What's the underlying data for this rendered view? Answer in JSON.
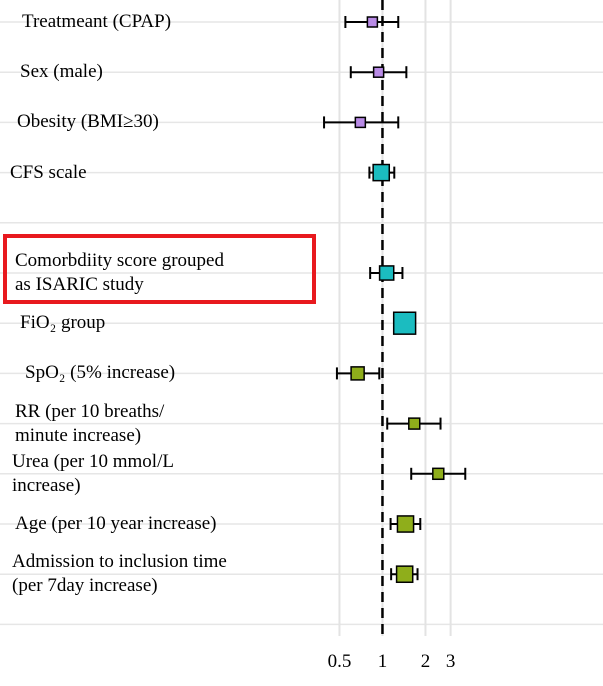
{
  "chart_data": {
    "type": "forest",
    "categories": [
      "Treatmeant (CPAP)",
      "Sex (male)",
      "Obesity (BMI≥30)",
      "CFS scale",
      null,
      "Comorbdiity score grouped\nas ISARIC study",
      "FiO₂ group",
      "SpO₂ (5% increase)",
      "RR (per 10 breaths/\nminute increase)",
      "Urea (per 10 mmol/L\nincrease)",
      "Age (per 10 year increase)",
      "Admission to inclusion time\n(per 7day increase)"
    ],
    "values": [
      0.85,
      0.94,
      0.7,
      0.98,
      null,
      1.07,
      1.43,
      0.67,
      1.67,
      2.46,
      1.45,
      1.43
    ],
    "lower": [
      0.55,
      0.6,
      0.39,
      0.81,
      null,
      0.82,
      1.25,
      0.48,
      1.08,
      1.59,
      1.14,
      1.15
    ],
    "upper": [
      1.29,
      1.47,
      1.29,
      1.21,
      null,
      1.38,
      1.65,
      0.95,
      2.55,
      3.8,
      1.84,
      1.76
    ],
    "weights": [
      1,
      1,
      1,
      2.6,
      null,
      2,
      4.8,
      1.7,
      1.2,
      1.2,
      2.6,
      2.6
    ],
    "colors": [
      "#b98be6",
      "#b98be6",
      "#b98be6",
      "#1bbcc0",
      null,
      "#1bbcc0",
      "#1bbcc0",
      "#8fae1b",
      "#8fae1b",
      "#8fae1b",
      "#8fae1b",
      "#8fae1b"
    ],
    "log_x": true,
    "xlim": [
      0.0021,
      35
    ],
    "xticks": [
      0.5,
      1,
      2,
      3
    ],
    "reference_line": 1,
    "grid": true
  }
}
